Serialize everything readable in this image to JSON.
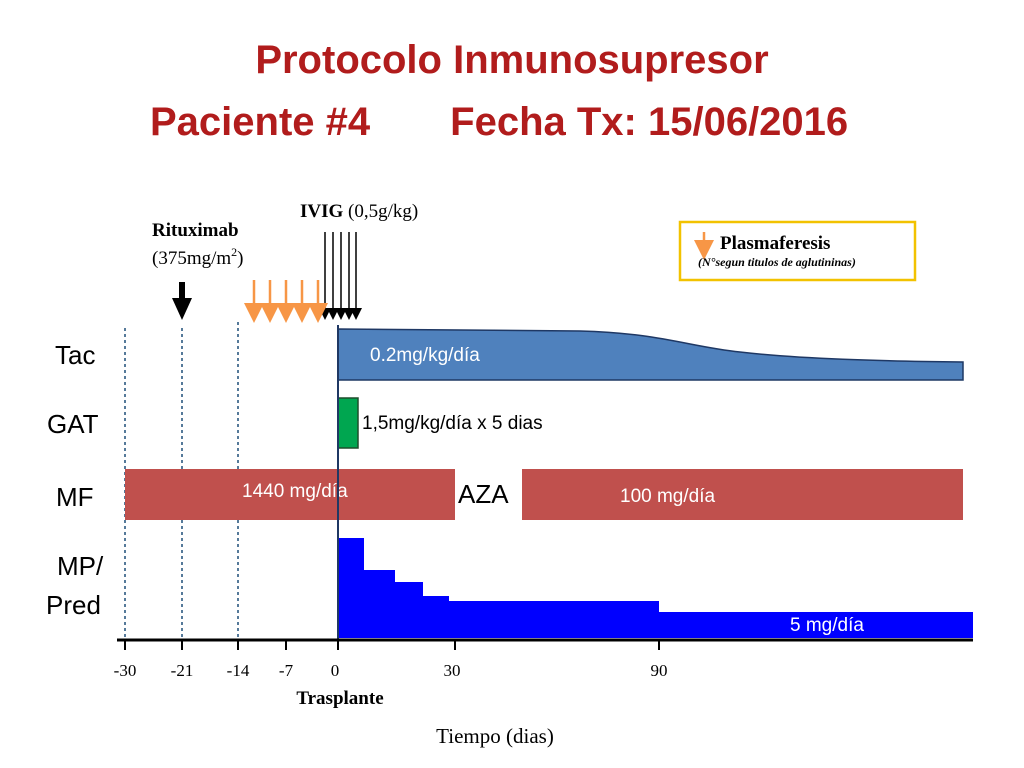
{
  "title": {
    "line1": "Protocolo Inmunosupresor",
    "patient": "Paciente #4",
    "date": "Fecha Tx: 15/06/2016"
  },
  "ivig": {
    "name": "IVIG",
    "dose": "(0,5g/kg)"
  },
  "rituximab": {
    "name": "Rituximab",
    "dose_prefix": "(375mg/m",
    "dose_sup": "2",
    "dose_suffix": ")"
  },
  "legend": {
    "title": "Plasmaferesis",
    "note": "(N°segun titulos de aglutininas)"
  },
  "rows": {
    "tac": "Tac",
    "gat": "GAT",
    "mf": "MF",
    "mp1": "MP/",
    "mp2": "Pred"
  },
  "labels": {
    "tac_dose": "0.2mg/kg/día",
    "gat_dose": "1,5mg/kg/día  x 5 dias",
    "mf_dose": "1440 mg/día",
    "aza": "AZA",
    "aza_dose": "100 mg/día",
    "pred_dose": "5 mg/día"
  },
  "axis": {
    "ticks": [
      "-30",
      "-21",
      "-14",
      "-7",
      "0",
      "30",
      "90"
    ],
    "transplant": "Trasplante",
    "xlabel": "Tiempo (dias)"
  },
  "colors": {
    "title": "#b11c1c",
    "tac": "#4f81bd",
    "gat": "#00a650",
    "mf": "#c0504d",
    "pred": "#0000ff",
    "plasma_arrow": "#f79646",
    "legend_border": "#f2c200"
  }
}
